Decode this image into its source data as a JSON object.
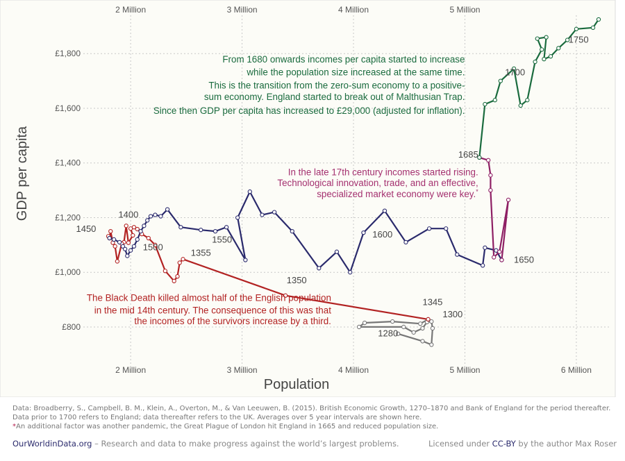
{
  "chart_data": {
    "type": "line",
    "xlabel": "Population",
    "ylabel": "GDP per capita",
    "xlim": [
      1.7,
      6.2
    ],
    "ylim": [
      650,
      1920
    ],
    "x_ticks_bottom": [
      {
        "value": 2,
        "label": "2 Million"
      },
      {
        "value": 3,
        "label": "3 Million"
      },
      {
        "value": 4,
        "label": "4 Million"
      },
      {
        "value": 5,
        "label": "5 Million"
      },
      {
        "value": 6,
        "label": "6 Million"
      }
    ],
    "x_ticks_top": [
      {
        "value": 2,
        "label": "2 Million"
      },
      {
        "value": 3,
        "label": "3 Million"
      },
      {
        "value": 4,
        "label": "4 Million"
      },
      {
        "value": 5,
        "label": "5 Million"
      }
    ],
    "y_ticks": [
      {
        "value": 800,
        "label": "£800"
      },
      {
        "value": 1000,
        "label": "£1,000"
      },
      {
        "value": 1200,
        "label": "£1,200"
      },
      {
        "value": 1400,
        "label": "£1,400"
      },
      {
        "value": 1600,
        "label": "£1,600"
      },
      {
        "value": 1800,
        "label": "£1,800"
      }
    ],
    "grid": true,
    "series": [
      {
        "color": "#777777",
        "points": [
          [
            4.4,
            775
          ],
          [
            4.62,
            748
          ],
          [
            4.7,
            735
          ],
          [
            4.71,
            795
          ],
          [
            4.7,
            820
          ],
          [
            4.66,
            818
          ],
          [
            4.62,
            795
          ],
          [
            4.54,
            780
          ],
          [
            4.45,
            800
          ],
          [
            4.05,
            800
          ],
          [
            4.1,
            815
          ],
          [
            4.35,
            820
          ],
          [
            4.6,
            812
          ],
          [
            4.67,
            828
          ]
        ]
      },
      {
        "color": "#b22222",
        "points": [
          [
            4.67,
            828
          ],
          [
            3.39,
            915
          ],
          [
            2.47,
            1048
          ],
          [
            2.44,
            1035
          ],
          [
            2.42,
            985
          ],
          [
            2.39,
            968
          ],
          [
            2.31,
            1005
          ],
          [
            2.22,
            1100
          ],
          [
            2.16,
            1125
          ],
          [
            2.1,
            1140
          ],
          [
            2.06,
            1158
          ],
          [
            2.03,
            1165
          ],
          [
            2.0,
            1160
          ],
          [
            2.02,
            1135
          ],
          [
            1.98,
            1108
          ],
          [
            1.96,
            1170
          ],
          [
            1.94,
            1110
          ],
          [
            1.92,
            1105
          ],
          [
            1.88,
            1040
          ],
          [
            1.86,
            1095
          ],
          [
            1.84,
            1108
          ],
          [
            1.82,
            1150
          ],
          [
            1.81,
            1125
          ],
          [
            1.8,
            1132
          ]
        ]
      },
      {
        "color": "#2a2a6c",
        "points": [
          [
            1.81,
            1125
          ],
          [
            1.85,
            1120
          ],
          [
            1.9,
            1110
          ],
          [
            1.93,
            1095
          ],
          [
            1.95,
            1085
          ],
          [
            1.97,
            1060
          ],
          [
            2.0,
            1080
          ],
          [
            2.03,
            1095
          ],
          [
            2.06,
            1120
          ],
          [
            2.09,
            1150
          ],
          [
            2.12,
            1170
          ],
          [
            2.15,
            1190
          ],
          [
            2.18,
            1205
          ],
          [
            2.22,
            1210
          ],
          [
            2.27,
            1205
          ],
          [
            2.33,
            1230
          ],
          [
            2.45,
            1165
          ],
          [
            2.63,
            1155
          ],
          [
            2.76,
            1150
          ],
          [
            2.86,
            1165
          ],
          [
            3.03,
            1045
          ],
          [
            2.96,
            1200
          ],
          [
            3.07,
            1295
          ],
          [
            3.18,
            1210
          ],
          [
            3.29,
            1220
          ],
          [
            3.45,
            1150
          ],
          [
            3.69,
            1015
          ],
          [
            3.85,
            1075
          ],
          [
            3.97,
            1000
          ],
          [
            4.09,
            1145
          ],
          [
            4.28,
            1225
          ],
          [
            4.47,
            1110
          ],
          [
            4.68,
            1160
          ],
          [
            4.83,
            1160
          ],
          [
            4.93,
            1065
          ],
          [
            5.16,
            1025
          ],
          [
            5.18,
            1090
          ],
          [
            5.28,
            1080
          ],
          [
            5.33,
            1045
          ]
        ]
      },
      {
        "color": "#8e1f64",
        "points": [
          [
            5.33,
            1045
          ],
          [
            5.39,
            1265
          ],
          [
            5.31,
            1075
          ],
          [
            5.26,
            1055
          ],
          [
            5.23,
            1300
          ],
          [
            5.23,
            1355
          ],
          [
            5.21,
            1410
          ],
          [
            5.13,
            1420
          ]
        ]
      },
      {
        "color": "#1a6b3e",
        "points": [
          [
            5.13,
            1420
          ],
          [
            5.18,
            1615
          ],
          [
            5.27,
            1630
          ],
          [
            5.32,
            1700
          ],
          [
            5.44,
            1745
          ],
          [
            5.5,
            1610
          ],
          [
            5.56,
            1630
          ],
          [
            5.63,
            1770
          ],
          [
            5.69,
            1815
          ],
          [
            5.65,
            1855
          ],
          [
            5.73,
            1860
          ],
          [
            5.71,
            1780
          ],
          [
            5.77,
            1790
          ],
          [
            5.84,
            1820
          ],
          [
            5.92,
            1850
          ],
          [
            6.0,
            1890
          ],
          [
            6.15,
            1895
          ],
          [
            6.2,
            1925
          ]
        ]
      }
    ],
    "point_labels": [
      {
        "text": "1450",
        "x": 1.6,
        "y": 1148
      },
      {
        "text": "1400",
        "x": 1.98,
        "y": 1200
      },
      {
        "text": "1500",
        "x": 2.2,
        "y": 1080
      },
      {
        "text": "1355",
        "x": 2.63,
        "y": 1060
      },
      {
        "text": "1550",
        "x": 2.82,
        "y": 1108
      },
      {
        "text": "1350",
        "x": 3.49,
        "y": 960
      },
      {
        "text": "1600",
        "x": 4.26,
        "y": 1128
      },
      {
        "text": "1345",
        "x": 4.71,
        "y": 880
      },
      {
        "text": "1300",
        "x": 4.89,
        "y": 835
      },
      {
        "text": "1280",
        "x": 4.31,
        "y": 765
      },
      {
        "text": "1650",
        "x": 5.53,
        "y": 1035
      },
      {
        "text": "1685",
        "x": 5.03,
        "y": 1420
      },
      {
        "text": "1700",
        "x": 5.45,
        "y": 1720
      },
      {
        "text": "1750",
        "x": 6.02,
        "y": 1840
      }
    ],
    "annotations": [
      {
        "color": "#1a6b3e",
        "lines": [
          {
            "text": "From 1680 onwards incomes per capita started to increase",
            "x": 5.0,
            "y": 1768
          },
          {
            "text": "while the population size increased at the same time.",
            "x": 5.0,
            "y": 1720
          },
          {
            "text": "This is the transition from the zero-sum economy to a positive-",
            "x": 5.0,
            "y": 1672
          },
          {
            "text": "sum economy. England started to break out of Malthusian Trap.",
            "x": 5.0,
            "y": 1630
          },
          {
            "text": "Since then GDP per capita has increased to £29,000 (adjusted for inflation).",
            "x": 5.0,
            "y": 1580
          }
        ]
      },
      {
        "color": "#a4306f",
        "lines": [
          {
            "text": "In the late 17th century incomes started rising.",
            "x": 5.12,
            "y": 1355
          },
          {
            "text": "Technological innovation, trade, and an effective,",
            "x": 5.12,
            "y": 1315
          },
          {
            "text": "specialized market economy were key.",
            "x": 5.12,
            "y": 1275,
            "star": "*"
          }
        ]
      },
      {
        "color": "#b22222",
        "lines": [
          {
            "text": "The Black Death killed almost half of the English population",
            "x": 3.8,
            "y": 895
          },
          {
            "text": "in the mid 14th century. The consequence of this was that",
            "x": 3.8,
            "y": 850
          },
          {
            "text": "the incomes of the survivors increase by a third.",
            "x": 3.8,
            "y": 810
          }
        ]
      }
    ]
  },
  "footer": {
    "source_line1": "Data: Broadberry, S., Campbell, B. M., Klein, A., Overton, M., & Van Leeuwen, B. (2015). British Economic Growth, 1270–1870 and Bank of England for the period thereafter.",
    "source_line2": "Data prior to 1700 refers to England; data thereafter refers to the UK. Averages over 5 year intervals are shown here.",
    "footnote_star": "*",
    "footnote": "An additional factor was another pandemic, the Great Plague of London hit England in 1665 and reduced population size.",
    "brand": "OurWorldinData.org",
    "tagline": " – Research and data to make progress against the world’s largest problems.",
    "license_prefix": "Licensed under ",
    "license_link": "CC-BY",
    "license_suffix": " by the author Max Roser"
  },
  "colors": {
    "background": "#fcfcf7",
    "grid": "#c8c8c8",
    "axis_text": "#555555"
  }
}
